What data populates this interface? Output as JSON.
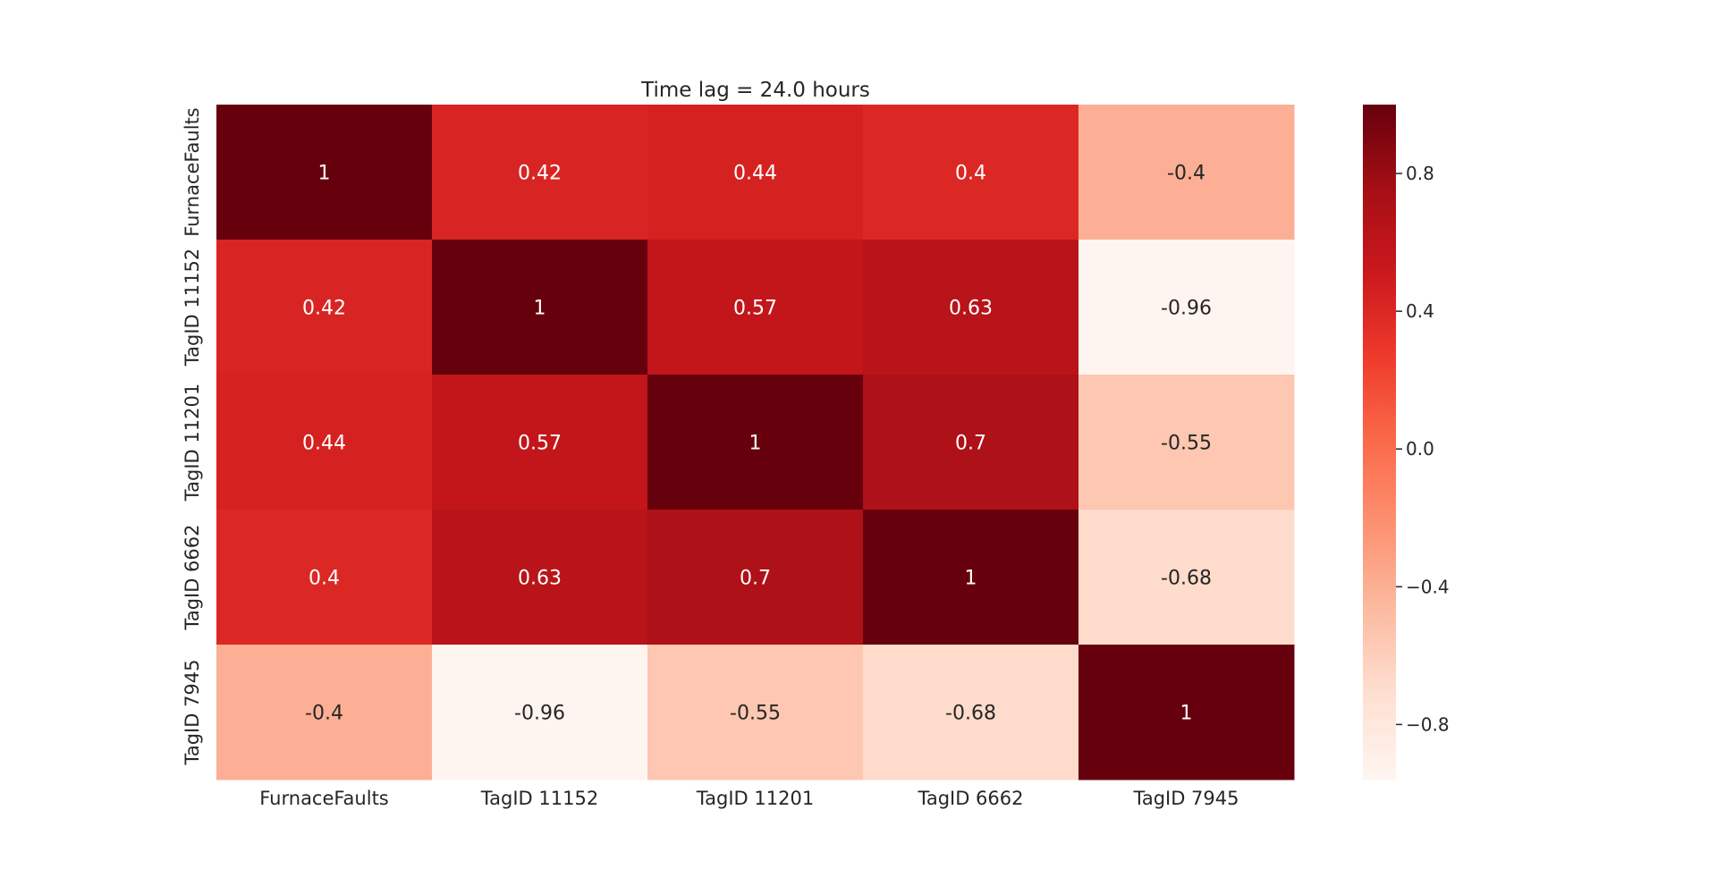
{
  "chart_data": {
    "type": "heatmap",
    "title": "Time lag = 24.0 hours",
    "row_labels": [
      "FurnaceFaults",
      "TagID 11152",
      "TagID 11201",
      "TagID 6662",
      "TagID 7945"
    ],
    "col_labels": [
      "FurnaceFaults",
      "TagID 11152",
      "TagID 11201",
      "TagID 6662",
      "TagID 7945"
    ],
    "values": [
      [
        1,
        0.42,
        0.44,
        0.4,
        -0.4
      ],
      [
        0.42,
        1,
        0.57,
        0.63,
        -0.96
      ],
      [
        0.44,
        0.57,
        1,
        0.7,
        -0.55
      ],
      [
        0.4,
        0.63,
        0.7,
        1,
        -0.68
      ],
      [
        -0.4,
        -0.96,
        -0.55,
        -0.68,
        1
      ]
    ],
    "annotations": [
      [
        "1",
        "0.42",
        "0.44",
        "0.4",
        "-0.4"
      ],
      [
        "0.42",
        "1",
        "0.57",
        "0.63",
        "-0.96"
      ],
      [
        "0.44",
        "0.57",
        "1",
        "0.7",
        "-0.55"
      ],
      [
        "0.4",
        "0.63",
        "0.7",
        "1",
        "-0.68"
      ],
      [
        "-0.4",
        "-0.96",
        "-0.55",
        "-0.68",
        "1"
      ]
    ],
    "colormap": "Reds",
    "vmin": -0.96,
    "vmax": 1,
    "colorbar_ticks": [
      0.8,
      0.4,
      0.0,
      -0.4,
      -0.8
    ],
    "colorbar_tick_labels": [
      "0.8",
      "0.4",
      "0.0",
      "−0.4",
      "−0.8"
    ],
    "colors": {
      "annotation_dark": "#262626",
      "annotation_light": "#ffffff",
      "text": "#262626"
    }
  }
}
